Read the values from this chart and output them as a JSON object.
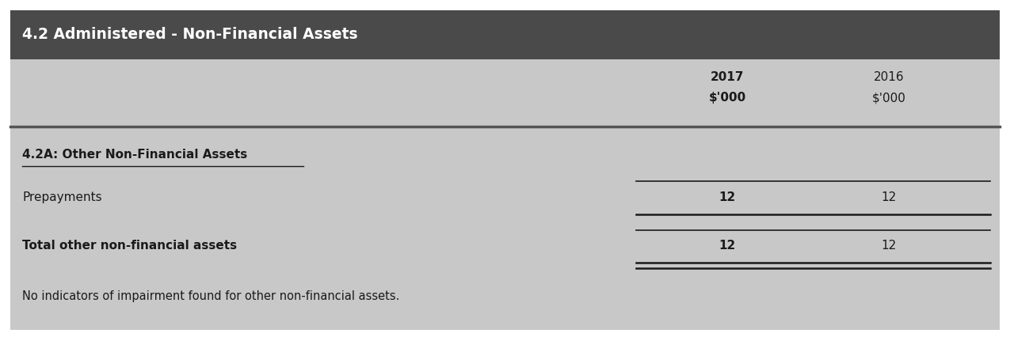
{
  "title": "4.2 Administered - Non-Financial Assets",
  "title_bg_color": "#4a4a4a",
  "title_text_color": "#ffffff",
  "body_bg_color": "#c8c8c8",
  "outer_bg_color": "#ffffff",
  "col_2017": "2017",
  "col_2016": "2016",
  "unit": "$'000",
  "section_header": "4.2A: Other Non-Financial Assets",
  "rows": [
    {
      "label": "Prepayments",
      "val2017": "12",
      "val2016": "12",
      "bold_label": false,
      "bold_val": true,
      "line_below": true,
      "double_line": false
    },
    {
      "label": "Total other non-financial assets",
      "val2017": "12",
      "val2016": "12",
      "bold_label": true,
      "bold_val": true,
      "line_below": true,
      "double_line": true
    }
  ],
  "footnote": "No indicators of impairment found for other non-financial assets.",
  "figwidth": 12.75,
  "figheight": 4.26,
  "dpi": 100
}
